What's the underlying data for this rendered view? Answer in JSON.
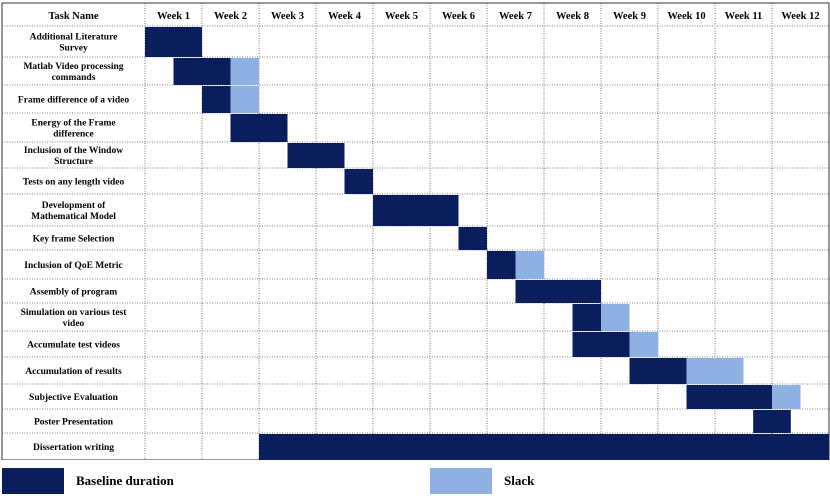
{
  "colors": {
    "baseline": "#0a1e5e",
    "slack": "#8eb0e2"
  },
  "chart_data": {
    "type": "gantt",
    "header": {
      "task_column": "Task Name",
      "weeks": [
        "Week 1",
        "Week 2",
        "Week 3",
        "Week 4",
        "Week 5",
        "Week 6",
        "Week 7",
        "Week 8",
        "Week 9",
        "Week 10",
        "Week 11",
        "Week 12"
      ]
    },
    "tasks": [
      {
        "lines": [
          "Additional Literature",
          "Survey"
        ],
        "baseline": [
          0,
          1.0
        ],
        "slack": null
      },
      {
        "lines": [
          "Matlab Video processing",
          "commands"
        ],
        "baseline": [
          0.5,
          1.5
        ],
        "slack": [
          1.5,
          2.0
        ]
      },
      {
        "lines": [
          "Frame difference of a video"
        ],
        "baseline": [
          1.0,
          1.5
        ],
        "slack": [
          1.5,
          2.0
        ]
      },
      {
        "lines": [
          "Energy of the Frame",
          "difference"
        ],
        "baseline": [
          1.5,
          2.5
        ],
        "slack": null
      },
      {
        "lines": [
          "Inclusion of the Window",
          "Structure"
        ],
        "baseline": [
          2.5,
          3.5
        ],
        "slack": null
      },
      {
        "lines": [
          "Tests on any length video"
        ],
        "baseline": [
          3.5,
          4.0
        ],
        "slack": null
      },
      {
        "lines": [
          "Development of",
          "Mathematical Model"
        ],
        "baseline": [
          4.0,
          5.5
        ],
        "slack": null
      },
      {
        "lines": [
          "Key frame Selection"
        ],
        "baseline": [
          5.5,
          6.0
        ],
        "slack": null
      },
      {
        "lines": [
          "Inclusion of QoE Metric"
        ],
        "baseline": [
          6.0,
          6.5
        ],
        "slack": [
          6.5,
          7.0
        ]
      },
      {
        "lines": [
          "Assembly of program"
        ],
        "baseline": [
          6.5,
          8.0
        ],
        "slack": null
      },
      {
        "lines": [
          "Simulation on various test",
          "video"
        ],
        "baseline": [
          7.5,
          8.0
        ],
        "slack": [
          8.0,
          8.5
        ]
      },
      {
        "lines": [
          "Accumulate test videos"
        ],
        "baseline": [
          7.5,
          8.5
        ],
        "slack": [
          8.5,
          9.0
        ]
      },
      {
        "lines": [
          "Accumulation of results"
        ],
        "baseline": [
          8.5,
          9.5
        ],
        "slack": [
          9.5,
          10.5
        ]
      },
      {
        "lines": [
          "Subjective Evaluation"
        ],
        "baseline": [
          9.5,
          11.0
        ],
        "slack": [
          11.0,
          11.5
        ]
      },
      {
        "lines": [
          "Poster Presentation"
        ],
        "baseline": [
          10.67,
          11.33
        ],
        "slack": null
      },
      {
        "lines": [
          "Dissertation writing"
        ],
        "baseline": [
          2.0,
          12.0
        ],
        "slack": null
      }
    ],
    "legend": [
      {
        "label": "Baseline duration",
        "color_key": "baseline"
      },
      {
        "label": "Slack",
        "color_key": "slack"
      }
    ]
  }
}
